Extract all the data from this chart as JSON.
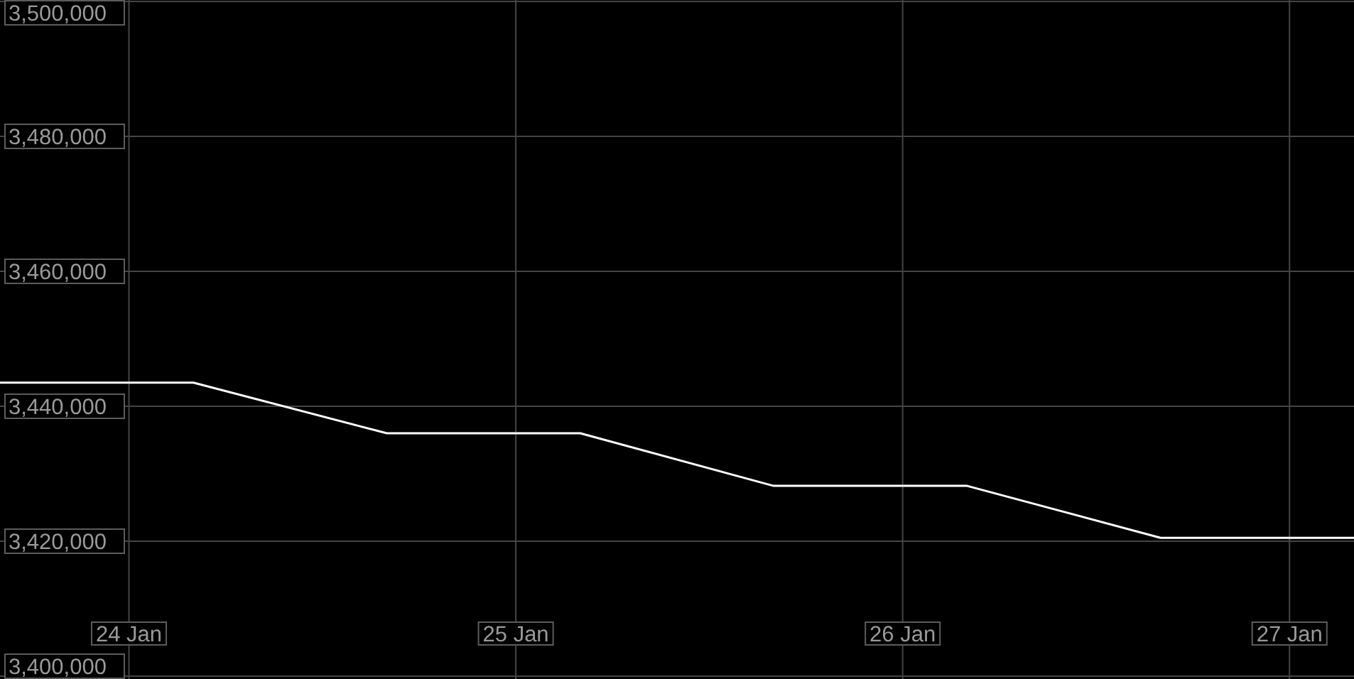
{
  "chart_data": {
    "type": "line",
    "x": [
      "--01-23T16:00",
      "--01-24T04:00",
      "--01-24T16:00",
      "--01-25T04:00",
      "--01-25T16:00",
      "--01-26T04:00",
      "--01-26T16:00",
      "--01-27T04:00"
    ],
    "series": [
      {
        "color": "#ffffff",
        "values": [
          3443500,
          3443500,
          3436000,
          3436000,
          3428200,
          3428200,
          3420500,
          3420500
        ]
      }
    ],
    "xlim": [
      "--01-23T16:00",
      "--01-27T04:00"
    ],
    "xticks": [
      {
        "value": "--01-24",
        "label": "24 Jan"
      },
      {
        "value": "--01-25",
        "label": "25 Jan"
      },
      {
        "value": "--01-26",
        "label": "26 Jan"
      },
      {
        "value": "--01-27",
        "label": "27 Jan"
      }
    ],
    "ylim": [
      3400000,
      3500000
    ],
    "yticks": [
      {
        "value": 3400000,
        "label": "3,400,000"
      },
      {
        "value": 3420000,
        "label": "3,420,000"
      },
      {
        "value": 3440000,
        "label": "3,440,000"
      },
      {
        "value": 3460000,
        "label": "3,460,000"
      },
      {
        "value": 3480000,
        "label": "3,480,000"
      },
      {
        "value": 3500000,
        "label": "3,500,000"
      }
    ],
    "grid": true,
    "line_style": "solid"
  }
}
